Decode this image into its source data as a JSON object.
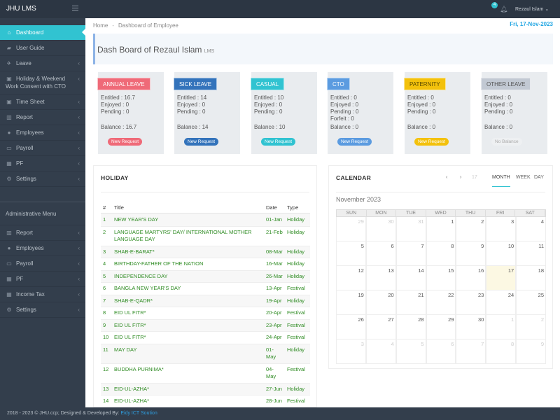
{
  "app": {
    "title": "JHU LMS",
    "user": "Rezaul Islam",
    "notifications": "4"
  },
  "sidebar": {
    "items": [
      {
        "label": "Dashboard",
        "icon": "home-icon",
        "active": true
      },
      {
        "label": "User Guide",
        "icon": "book-icon"
      },
      {
        "label": "Leave",
        "icon": "plane-icon"
      },
      {
        "label": "Holiday & Weekend Work Consent with CTO",
        "icon": "calendar-icon"
      },
      {
        "label": "Time Sheet",
        "icon": "calendar-check-icon"
      },
      {
        "label": "Report",
        "icon": "bar-chart-icon"
      },
      {
        "label": "Employees",
        "icon": "user-icon"
      },
      {
        "label": "Payroll",
        "icon": "money-icon"
      },
      {
        "label": "PF",
        "icon": "gift-icon"
      },
      {
        "label": "Settings",
        "icon": "gears-icon"
      }
    ],
    "admin_title": "Administrative Menu",
    "admin_items": [
      {
        "label": "Report",
        "icon": "bar-chart-icon"
      },
      {
        "label": "Employees",
        "icon": "user-icon"
      },
      {
        "label": "Payroll",
        "icon": "money-icon"
      },
      {
        "label": "PF",
        "icon": "gift-icon"
      },
      {
        "label": "Income Tax",
        "icon": "gift-icon"
      },
      {
        "label": "Settings",
        "icon": "gears-icon"
      }
    ]
  },
  "breadcrumb": {
    "home": "Home",
    "current": "Dashboard of Employee"
  },
  "date": "Fri, 17-Nov-2023",
  "page": {
    "title": "Dash Board of Rezaul Islam",
    "subtitle": "LMS"
  },
  "cards": [
    {
      "label": "ANNUAL LEAVE",
      "color": "#ef6a78",
      "lines": [
        "Entitled : 16.7",
        "Enjoyed : 0",
        "Pending : 0"
      ],
      "balance": "Balance : 16.7",
      "action": "New Request"
    },
    {
      "label": "SICK LEAVE",
      "color": "#3373bb",
      "lines": [
        "Entitled : 14",
        "Enjoyed : 0",
        "Pending : 0"
      ],
      "balance": "Balance : 14",
      "action": "New Request"
    },
    {
      "label": "CASUAL",
      "color": "#31c3d1",
      "lines": [
        "Entitled : 10",
        "Enjoyed : 0",
        "Pending : 0"
      ],
      "balance": "Balance : 10",
      "action": "New Request"
    },
    {
      "label": "CTO",
      "color": "#5b9be0",
      "lines": [
        "Entitled : 0",
        "Enjoyed : 0",
        "Pending : 0",
        "Forfeit : 0"
      ],
      "balance": "Balance : 0",
      "action": "New Request"
    },
    {
      "label": "PATERNITY",
      "color": "#f3c10c",
      "text": "#5a4a00",
      "lines": [
        "Entitled : 0",
        "Enjoyed : 0",
        "Pending : 0"
      ],
      "balance": "Balance : 0",
      "action": "New Request"
    },
    {
      "label": "OTHER LEAVE",
      "color": "#c2c9d3",
      "text": "#555",
      "lines": [
        "Entitled : 0",
        "Enjoyed : 0",
        "Pending : 0"
      ],
      "balance": "Balance : 0",
      "action": "No Balance"
    }
  ],
  "holiday": {
    "title": "HOLIDAY",
    "columns": [
      "#",
      "Title",
      "Date",
      "Type"
    ],
    "rows": [
      [
        "1",
        "NEW YEAR'S DAY",
        "01-Jan",
        "Holiday"
      ],
      [
        "2",
        "LANGUAGE MARTYRS' DAY/ INTERNATIONAL MOTHER LANGUAGE DAY",
        "21-Feb",
        "Holiday"
      ],
      [
        "3",
        "SHAB-E-BARAT*",
        "08-Mar",
        "Holiday"
      ],
      [
        "4",
        "BIRTHDAY-FATHER OF THE NATION",
        "16-Mar",
        "Holiday"
      ],
      [
        "5",
        "INDEPENDENCE DAY",
        "26-Mar",
        "Holiday"
      ],
      [
        "6",
        "BANGLA NEW YEAR'S DAY",
        "13-Apr",
        "Festival"
      ],
      [
        "7",
        "SHAB-E-QADR*",
        "19-Apr",
        "Holiday"
      ],
      [
        "8",
        "EID UL FITR*",
        "20-Apr",
        "Festival"
      ],
      [
        "9",
        "EID UL FITR*",
        "23-Apr",
        "Festival"
      ],
      [
        "10",
        "EID UL FITR*",
        "24-Apr",
        "Festival"
      ],
      [
        "11",
        "MAY DAY",
        "01-May",
        "Holiday"
      ],
      [
        "12",
        "BUDDHA PURNIMA*",
        "04-May",
        "Festival"
      ],
      [
        "13",
        "EID-UL-AZHA*",
        "27-Jun",
        "Holiday"
      ],
      [
        "14",
        "EID-UL-AZHA*",
        "28-Jun",
        "Festival"
      ]
    ]
  },
  "calendar": {
    "title": "CALENDAR",
    "prev": "‹",
    "next": "›",
    "today": "17",
    "views": [
      "MONTH",
      "WEEK",
      "DAY"
    ],
    "active_view": "MONTH",
    "month": "November 2023",
    "weekdays": [
      "SUN",
      "MON",
      "TUE",
      "WED",
      "THU",
      "FRI",
      "SAT"
    ],
    "weeks": [
      [
        "29",
        "30",
        "31",
        "1",
        "2",
        "3",
        "4"
      ],
      [
        "5",
        "6",
        "7",
        "8",
        "9",
        "10",
        "11"
      ],
      [
        "12",
        "13",
        "14",
        "15",
        "16",
        "17",
        "18"
      ],
      [
        "19",
        "20",
        "21",
        "22",
        "23",
        "24",
        "25"
      ],
      [
        "26",
        "27",
        "28",
        "29",
        "30",
        "1",
        "2"
      ],
      [
        "3",
        "4",
        "5",
        "6",
        "7",
        "8",
        "9"
      ]
    ]
  },
  "footer": {
    "text": "2018 - 2023 © JHU.ccp; Designed & Developed By: ",
    "link": "Eidy ICT Soution"
  }
}
